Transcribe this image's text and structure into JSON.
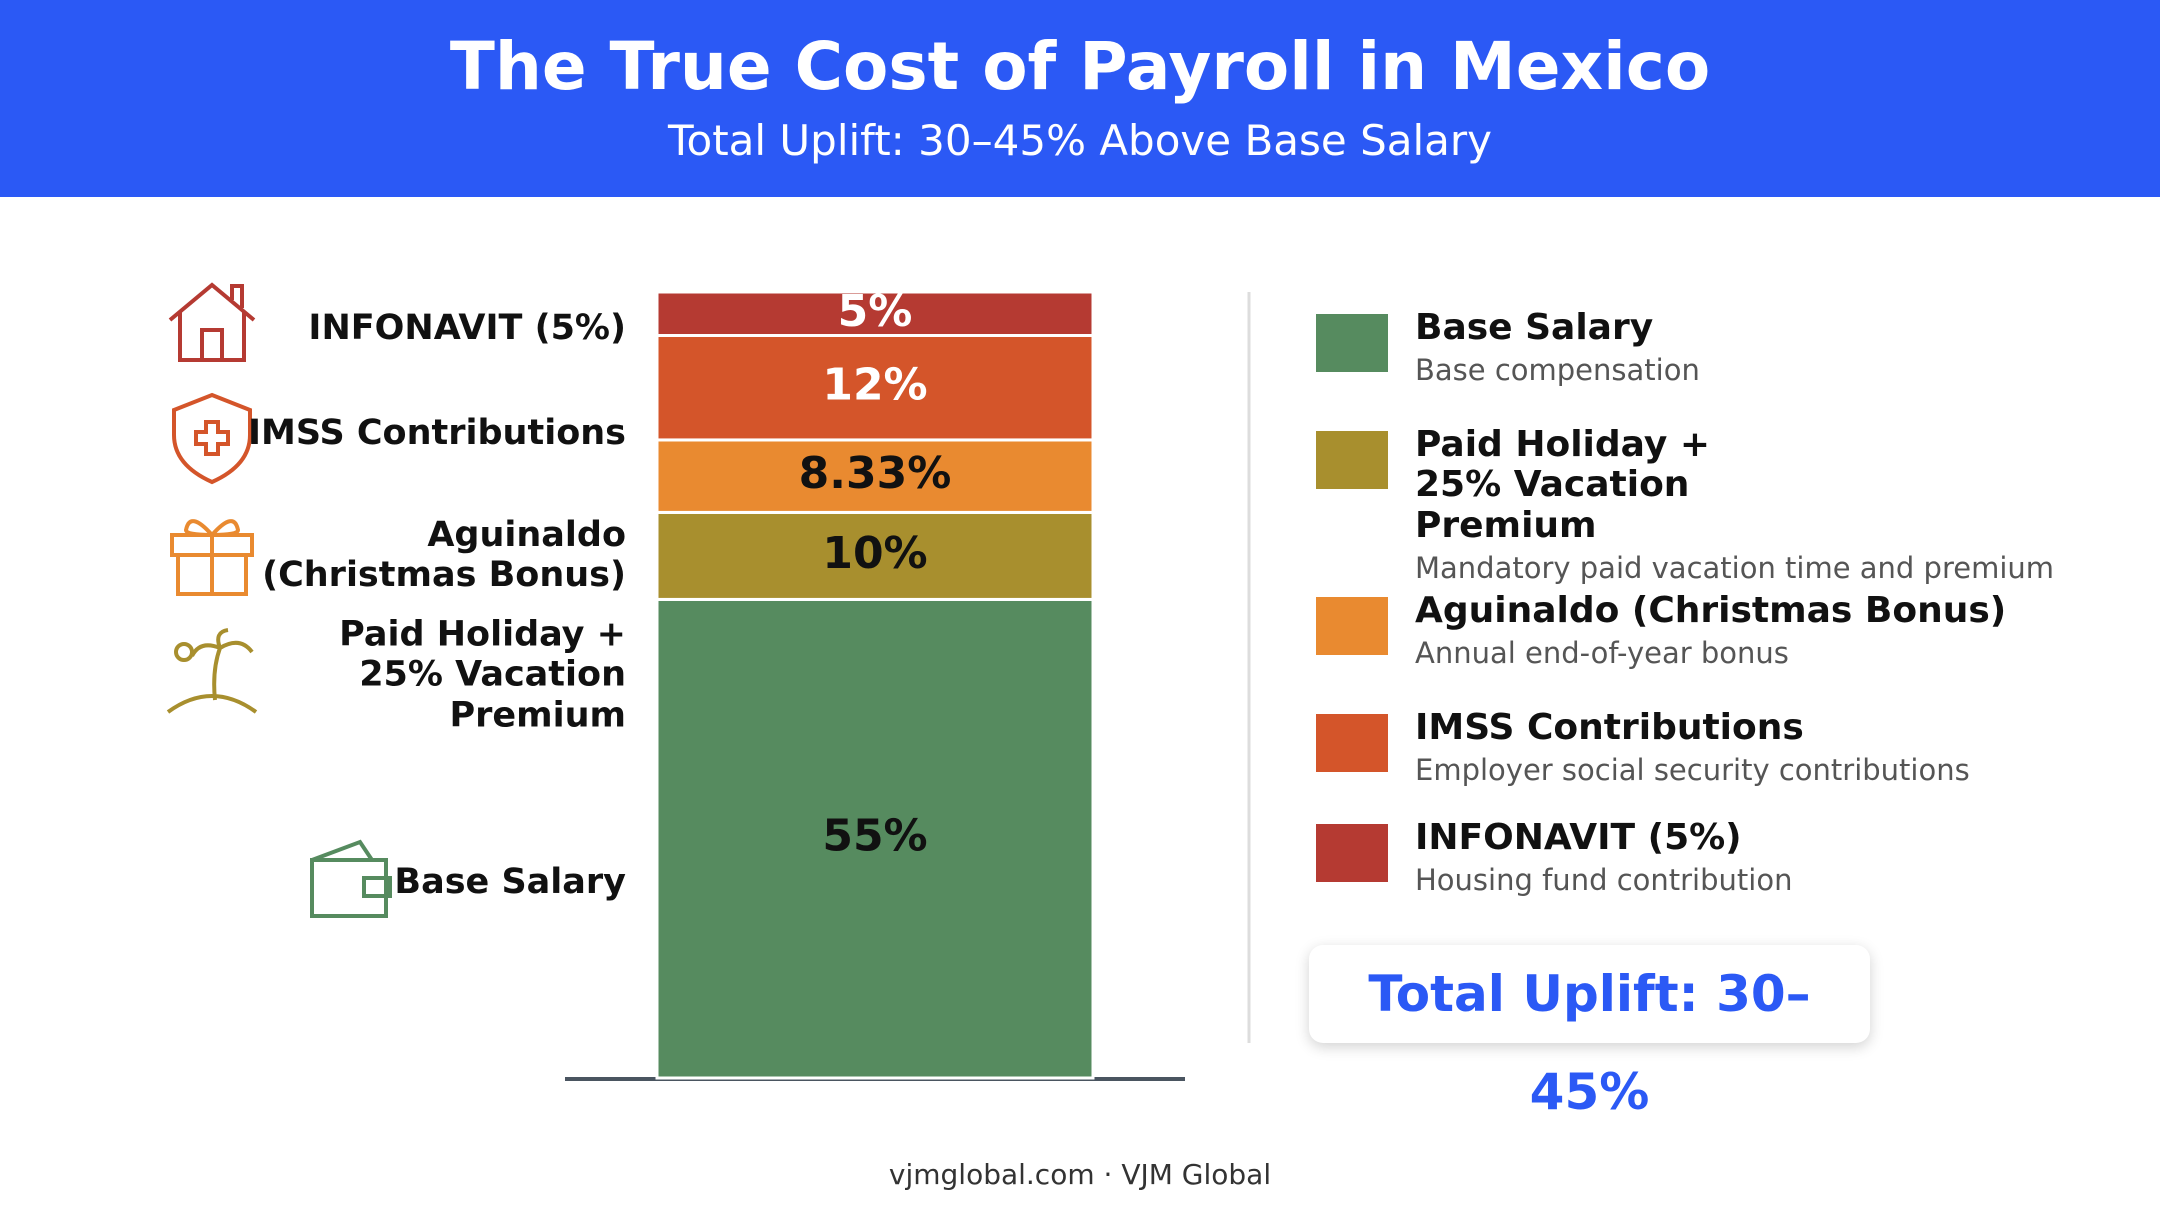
{
  "chart_data": {
    "type": "stacked_bar",
    "title": "The True Cost of Payroll in Mexico",
    "subtitle": "Total Uplift: 30–45% Above Base Salary",
    "series": [
      {
        "name": "Base Salary",
        "description": "Base compensation",
        "color": "#568b5f",
        "text_color": "#111111",
        "values": [
          55
        ],
        "value_labels": [
          "55%"
        ]
      },
      {
        "name": "Paid Holiday + 25% Vacation Premium",
        "description": "Mandatory paid vacation time and premium",
        "color": "#a88f2e",
        "text_color": "#111111",
        "values": [
          10
        ],
        "value_labels": [
          "10%"
        ]
      },
      {
        "name": "Aguinaldo (Christmas Bonus)",
        "description": "Annual end-of-year bonus",
        "color": "#e98a30",
        "text_color": "#111111",
        "values": [
          8.33
        ],
        "value_labels": [
          "8.33%"
        ]
      },
      {
        "name": "IMSS Contributions",
        "description": "Employer social security contributions",
        "color": "#d4552a",
        "text_color": "#ffffff",
        "values": [
          12
        ],
        "value_labels": [
          "12%"
        ]
      },
      {
        "name": "INFONAVIT (5%)",
        "description": "Housing fund contribution",
        "color": "#b53a32",
        "text_color": "#ffffff",
        "values": [
          5
        ],
        "value_labels": [
          "5%"
        ]
      }
    ],
    "total_label": "Total Uplift: 30–45%",
    "footer": "vjmglobal.com · VJM Global"
  }
}
